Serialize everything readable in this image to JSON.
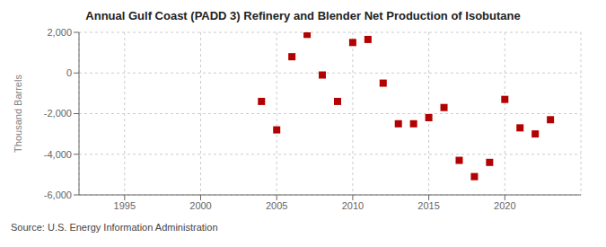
{
  "chart_data": {
    "type": "scatter",
    "title": "Annual Gulf Coast (PADD 3) Refinery and Blender Net Production of Isobutane",
    "y_label": "Thousand Barrels",
    "annotations": [
      "Source: U.S. Energy Information Administration"
    ],
    "x": [
      2004,
      2005,
      2006,
      2007,
      2008,
      2009,
      2010,
      2011,
      2012,
      2013,
      2014,
      2015,
      2016,
      2017,
      2018,
      2019,
      2020,
      2021,
      2022,
      2023
    ],
    "values": [
      -1400,
      -2800,
      800,
      1900,
      -100,
      -1400,
      1500,
      1650,
      -500,
      -2500,
      -2500,
      -2200,
      -1700,
      -4300,
      -5100,
      -4400,
      -1300,
      -2700,
      -3000,
      -2300
    ],
    "color": "#b30000",
    "marker": "square",
    "xlim": [
      1992,
      2025
    ],
    "xticks": [
      1995,
      2000,
      2005,
      2010,
      2015,
      2020
    ],
    "ylim": [
      -6000,
      2000
    ],
    "yticks": [
      {
        "value": -6000,
        "label": "-6,000"
      },
      {
        "value": -4000,
        "label": "-4,000"
      },
      {
        "value": -2000,
        "label": "-2,000"
      },
      0,
      {
        "value": 2000,
        "label": "2,000"
      }
    ],
    "grid": true
  }
}
